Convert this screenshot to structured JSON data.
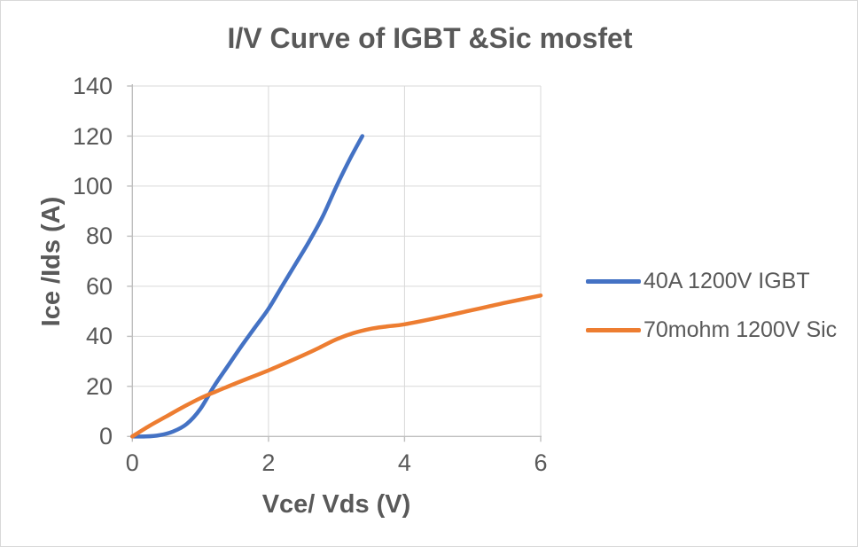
{
  "window": {
    "background": "#FFFFFF",
    "border_color": "#D9D9D9"
  },
  "chart_data": {
    "type": "line",
    "title": "I/V Curve of IGBT &Sic mosfet",
    "xlabel": "Vce/ Vds (V)",
    "ylabel": "Ice /Ids (A)",
    "xlim": [
      0,
      6
    ],
    "ylim": [
      0,
      140
    ],
    "x_ticks": [
      0,
      2,
      4,
      6
    ],
    "y_ticks": [
      0,
      20,
      40,
      60,
      80,
      100,
      120,
      140
    ],
    "grid": true,
    "legend_position": "right-center",
    "colors": {
      "gridline": "#D9D9D9",
      "axis_line": "#BFBFBF",
      "text": "#595959"
    },
    "series": [
      {
        "name": "40A 1200V IGBT",
        "color": "#4472C4",
        "x": [
          0,
          0.2,
          0.4,
          0.6,
          0.8,
          1.0,
          1.2,
          1.4,
          1.6,
          1.8,
          2.0,
          2.2,
          2.4,
          2.6,
          2.8,
          3.0,
          3.2,
          3.38
        ],
        "y": [
          0,
          0,
          0.5,
          2,
          5,
          11,
          20,
          28,
          36,
          43.5,
          51,
          60,
          69,
          78,
          88,
          100,
          111,
          120
        ]
      },
      {
        "name": "70mohm 1200V Sic",
        "color": "#ED7D31",
        "x": [
          0,
          0.25,
          0.5,
          0.75,
          1.0,
          1.25,
          1.5,
          1.75,
          2.0,
          2.25,
          2.5,
          2.75,
          3.0,
          3.25,
          3.5,
          3.75,
          4.0,
          4.5,
          5.0,
          5.5,
          6.0
        ],
        "y": [
          0,
          4.2,
          8,
          11.8,
          15.3,
          18.2,
          21,
          23.7,
          26.4,
          29.3,
          32.3,
          35.5,
          38.8,
          41.3,
          43,
          44,
          44.8,
          47.5,
          50.5,
          53.5,
          56.3
        ]
      }
    ]
  }
}
